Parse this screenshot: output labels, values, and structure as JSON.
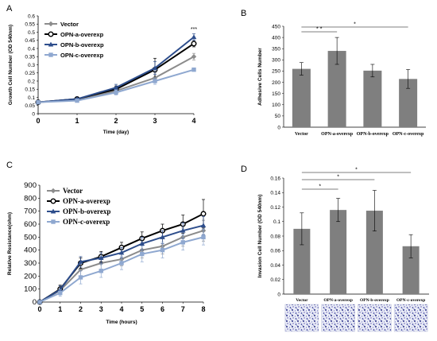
{
  "chart_data": [
    {
      "panel": "A",
      "type": "line",
      "xlabel": "Time (day)",
      "ylabel": "Growth Cell Number (OD 540nm)",
      "x": [
        0,
        1,
        2,
        3,
        4
      ],
      "xlim": [
        0,
        4
      ],
      "ylim": [
        0,
        0.6
      ],
      "yticks": [
        "0",
        "0.05",
        "0.1",
        "0.15",
        "0.2",
        "0.25",
        "0.3",
        "0.35",
        "0.4",
        "0.45",
        "0.5",
        "0.55",
        "0.6"
      ],
      "xticks": [
        "0",
        "1",
        "2",
        "3",
        "4"
      ],
      "legend_position": "top-left",
      "annotation": "***",
      "series": [
        {
          "name": "Vector",
          "color": "#8c8c8c",
          "marker": "diamond",
          "values": [
            0.07,
            0.085,
            0.14,
            0.22,
            0.35
          ],
          "err": [
            0.005,
            0.005,
            0.015,
            0.03,
            0.02
          ]
        },
        {
          "name": "OPN-a-overexp",
          "color": "#000000",
          "marker": "circle-open",
          "values": [
            0.07,
            0.09,
            0.15,
            0.27,
            0.43
          ],
          "err": [
            0.005,
            0.005,
            0.02,
            0.07,
            0.02
          ]
        },
        {
          "name": "OPN-b-overexp",
          "color": "#2e4e8c",
          "marker": "triangle",
          "values": [
            0.07,
            0.09,
            0.16,
            0.28,
            0.47
          ],
          "err": [
            0.005,
            0.005,
            0.02,
            0.04,
            0.02
          ]
        },
        {
          "name": "OPN-c-overexp",
          "color": "#8fa8d0",
          "marker": "square",
          "values": [
            0.07,
            0.08,
            0.13,
            0.2,
            0.27
          ],
          "err": [
            0.005,
            0.005,
            0.015,
            0.02,
            0.01
          ]
        }
      ]
    },
    {
      "panel": "B",
      "type": "bar",
      "ylabel": "Adhesive Cells Number",
      "categories": [
        "Vector",
        "OPN-a-overexp",
        "OPN-b-overexp",
        "OPN-c-overexp"
      ],
      "values": [
        260,
        340,
        252,
        215
      ],
      "err": [
        28,
        60,
        28,
        42
      ],
      "ylim": [
        0,
        450
      ],
      "yticks": [
        "0",
        "50",
        "100",
        "150",
        "200",
        "250",
        "300",
        "350",
        "400",
        "450"
      ],
      "bar_color": "#7f7f7f",
      "significance": [
        {
          "from": 0,
          "to": 1,
          "label": "* *"
        },
        {
          "from": 0,
          "to": 3,
          "label": "*"
        }
      ]
    },
    {
      "panel": "C",
      "type": "line",
      "xlabel": "Time (hours)",
      "ylabel": "Relative Resistance(ohm)",
      "x": [
        0,
        1,
        2,
        3,
        4,
        5,
        6,
        7,
        8
      ],
      "xlim": [
        0,
        8
      ],
      "ylim": [
        0,
        900
      ],
      "yticks": [
        "0",
        "100",
        "200",
        "300",
        "400",
        "500",
        "600",
        "700",
        "800",
        "900"
      ],
      "xticks": [
        "0",
        "1",
        "2",
        "3",
        "4",
        "5",
        "6",
        "7",
        "8"
      ],
      "legend_position": "top-left",
      "series": [
        {
          "name": "Vector",
          "color": "#8c8c8c",
          "marker": "diamond",
          "values": [
            0,
            90,
            250,
            300,
            330,
            400,
            430,
            500,
            550
          ],
          "err": [
            0,
            25,
            60,
            50,
            50,
            60,
            60,
            70,
            80
          ]
        },
        {
          "name": "OPN-a-overexp",
          "color": "#000000",
          "marker": "circle-open",
          "values": [
            0,
            100,
            300,
            350,
            420,
            490,
            550,
            600,
            680
          ],
          "err": [
            0,
            30,
            40,
            40,
            40,
            50,
            50,
            70,
            110
          ]
        },
        {
          "name": "OPN-b-overexp",
          "color": "#2e4e8c",
          "marker": "triangle",
          "values": [
            0,
            95,
            310,
            340,
            380,
            450,
            500,
            550,
            590
          ],
          "err": [
            0,
            30,
            40,
            40,
            40,
            50,
            50,
            60,
            70
          ]
        },
        {
          "name": "OPN-c-overexp",
          "color": "#8fa8d0",
          "marker": "square",
          "values": [
            0,
            70,
            190,
            240,
            300,
            370,
            400,
            460,
            500
          ],
          "err": [
            0,
            25,
            50,
            50,
            50,
            60,
            60,
            60,
            60
          ]
        }
      ]
    },
    {
      "panel": "D",
      "type": "bar",
      "ylabel": "Invasion Cell Number (OD 540nm)",
      "categories": [
        "Vector",
        "OPN-a-overexp",
        "OPN-b-overexp",
        "OPN-c-overexp"
      ],
      "values": [
        0.09,
        0.116,
        0.115,
        0.066
      ],
      "err": [
        0.022,
        0.016,
        0.028,
        0.016
      ],
      "ylim": [
        0,
        0.16
      ],
      "yticks": [
        "0",
        "0.02",
        "0.04",
        "0.06",
        "0.08",
        "0.1",
        "0.12",
        "0.14",
        "0.16"
      ],
      "bar_color": "#7f7f7f",
      "significance": [
        {
          "from": 0,
          "to": 1,
          "label": "*"
        },
        {
          "from": 0,
          "to": 2,
          "label": "*"
        },
        {
          "from": 0,
          "to": 3,
          "label": "*"
        }
      ],
      "images": [
        "invasion-image-vector",
        "invasion-image-opn-a",
        "invasion-image-opn-b",
        "invasion-image-opn-c"
      ]
    }
  ]
}
